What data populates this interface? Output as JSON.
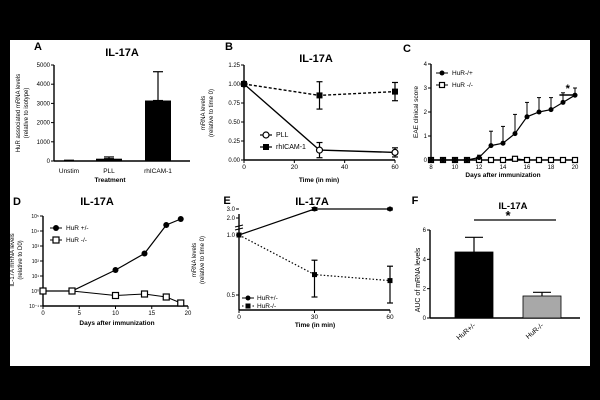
{
  "chart_data": [
    {
      "id": "A",
      "type": "bar",
      "panel_label": "A",
      "title": "IL-17A",
      "ylabel": "HuR associated mRNA levels (relative to isotype)",
      "xlabel": "Treatment",
      "categories": [
        "Unstim",
        "PLL",
        "rhICAM-1"
      ],
      "values": [
        20,
        120,
        3150
      ],
      "errors": [
        20,
        90,
        1500
      ],
      "ylim": [
        0,
        5000
      ],
      "yticks": [
        "0",
        "1000",
        "2000",
        "3000",
        "4000",
        "5000"
      ]
    },
    {
      "id": "B",
      "type": "line",
      "panel_label": "B",
      "title": "IL-17A",
      "ylabel": "mRNA levels (relative to time 0)",
      "xlabel": "Time (in min)",
      "x": [
        0,
        30,
        60
      ],
      "xticks": [
        "0",
        "20",
        "40",
        "60"
      ],
      "ylim": [
        0,
        1.25
      ],
      "yticks": [
        "0.00",
        "0.25",
        "0.50",
        "0.75",
        "1.00",
        "1.25"
      ],
      "series": [
        {
          "name": "PLL",
          "values": [
            1.0,
            0.13,
            0.1
          ],
          "errors": [
            0,
            0.1,
            0.06
          ]
        },
        {
          "name": "rhICAM-1",
          "values": [
            1.0,
            0.85,
            0.9
          ],
          "errors": [
            0,
            0.18,
            0.12
          ]
        }
      ]
    },
    {
      "id": "C",
      "type": "line",
      "panel_label": "C",
      "ylabel": "EAE clinical score",
      "xlabel": "Days after immunization",
      "x": [
        8,
        9,
        10,
        11,
        12,
        13,
        14,
        15,
        16,
        17,
        18,
        19,
        20
      ],
      "xticks": [
        "8",
        "10",
        "12",
        "14",
        "16",
        "18",
        "20"
      ],
      "ylim": [
        0,
        4
      ],
      "yticks": [
        "0",
        "1",
        "2",
        "3",
        "4"
      ],
      "annotation": "*",
      "series": [
        {
          "name": "HuR-/+",
          "values": [
            0,
            0,
            0,
            0,
            0.1,
            0.6,
            0.7,
            1.1,
            1.8,
            2.0,
            2.1,
            2.4,
            2.7
          ],
          "errors": [
            0,
            0,
            0,
            0,
            0.1,
            0.6,
            0.7,
            0.8,
            0.6,
            0.6,
            0.5,
            0.4,
            0.3
          ]
        },
        {
          "name": "HuR -/-",
          "values": [
            0,
            0,
            0,
            0,
            0,
            0,
            0,
            0.05,
            0,
            0,
            0,
            0,
            0
          ],
          "errors": [
            0,
            0,
            0,
            0,
            0,
            0,
            0,
            0.05,
            0,
            0,
            0,
            0,
            0
          ]
        }
      ]
    },
    {
      "id": "D",
      "type": "line",
      "panel_label": "D",
      "title": "IL-17A",
      "ylabel": "IL-17A mRNA levels (relative to D0)",
      "xlabel": "Days after immunization",
      "x": [
        0,
        4,
        10,
        14,
        17,
        19
      ],
      "xticks": [
        "0",
        "5",
        "10",
        "15",
        "20"
      ],
      "yscale": "log",
      "ylim_exp": [
        -1,
        5
      ],
      "yticks": [
        "10⁻¹",
        "10⁰",
        "10¹",
        "10²",
        "10³",
        "10⁴",
        "10⁵"
      ],
      "series": [
        {
          "name": "HuR +/-",
          "log_values": [
            0,
            0,
            1.4,
            2.5,
            4.4,
            4.8
          ]
        },
        {
          "name": "HuR -/-",
          "log_values": [
            0,
            0,
            -0.3,
            -0.2,
            -0.4,
            -0.8
          ]
        }
      ]
    },
    {
      "id": "E",
      "type": "line",
      "panel_label": "E",
      "title": "IL-17A",
      "ylabel": "mRNA levels (relative to time 0)",
      "xlabel": "Time (in min)",
      "x": [
        0,
        30,
        60
      ],
      "xticks": [
        "0",
        "30",
        "60"
      ],
      "yticks": [
        "0.5",
        "1.0",
        "2.0",
        "3.0"
      ],
      "series": [
        {
          "name": "HuR+/-",
          "values": [
            1.0,
            3.0,
            3.0
          ],
          "errors": [
            0,
            0.15,
            0.1
          ]
        },
        {
          "name": "HuR-/-",
          "values": [
            1.0,
            0.67,
            0.62
          ],
          "errors": [
            0,
            0.12,
            0.12
          ]
        }
      ]
    },
    {
      "id": "F",
      "type": "bar",
      "panel_label": "F",
      "title": "IL-17A",
      "ylabel": "AUC of mRNA levels",
      "categories": [
        "HuR+/-",
        "HuR-/-"
      ],
      "values": [
        4.5,
        1.5
      ],
      "errors": [
        1.0,
        0.25
      ],
      "colors": [
        "#000000",
        "#a8a8a8"
      ],
      "ylim": [
        0,
        6
      ],
      "yticks": [
        "0",
        "2",
        "4",
        "6"
      ],
      "annotation": "*"
    }
  ]
}
